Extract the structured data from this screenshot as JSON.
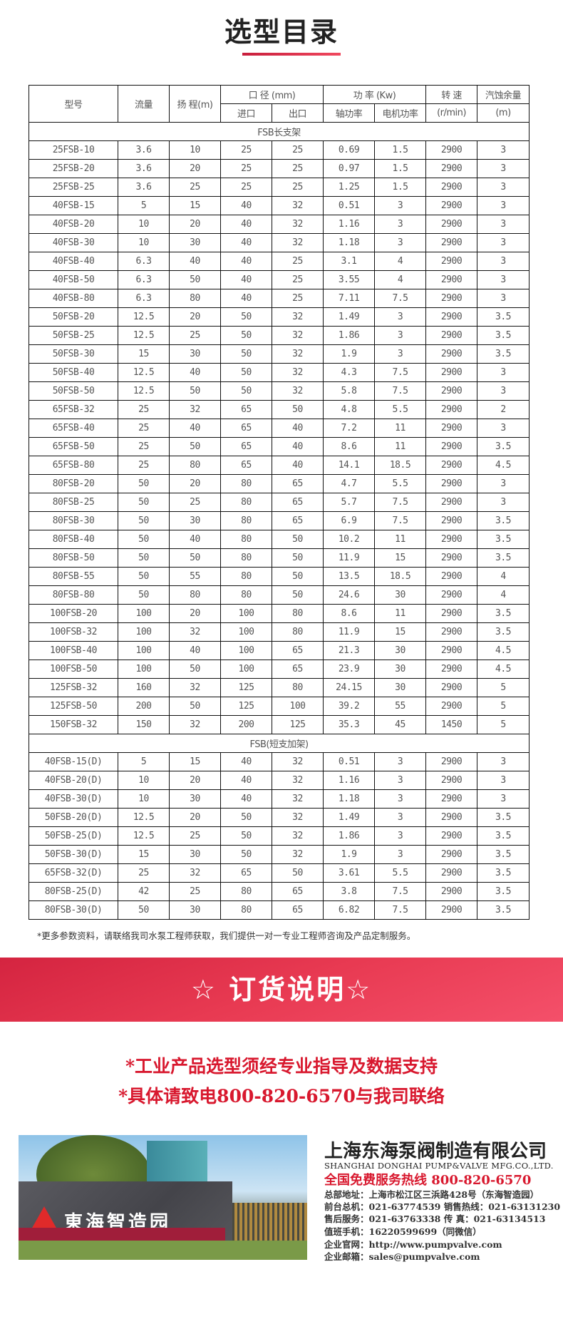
{
  "title": "选型目录",
  "table": {
    "headers": {
      "model": "型号",
      "flow": "流量",
      "head": "扬 程(m)",
      "diameter": "口 径 (mm)",
      "inlet": "进口",
      "outlet": "出口",
      "power": "功 率 (Kw)",
      "shaft_power": "轴功率",
      "motor_power": "电机功率",
      "speed": "转 速",
      "speed_unit": "(r/min)",
      "npsh": "汽蚀余量",
      "npsh_unit": "(m)"
    },
    "sections": [
      {
        "name": "FSB长支架",
        "rows": [
          [
            "25FSB-10",
            "3.6",
            "10",
            "25",
            "25",
            "0.69",
            "1.5",
            "2900",
            "3"
          ],
          [
            "25FSB-20",
            "3.6",
            "20",
            "25",
            "25",
            "0.97",
            "1.5",
            "2900",
            "3"
          ],
          [
            "25FSB-25",
            "3.6",
            "25",
            "25",
            "25",
            "1.25",
            "1.5",
            "2900",
            "3"
          ],
          [
            "40FSB-15",
            "5",
            "15",
            "40",
            "32",
            "0.51",
            "3",
            "2900",
            "3"
          ],
          [
            "40FSB-20",
            "10",
            "20",
            "40",
            "32",
            "1.16",
            "3",
            "2900",
            "3"
          ],
          [
            "40FSB-30",
            "10",
            "30",
            "40",
            "32",
            "1.18",
            "3",
            "2900",
            "3"
          ],
          [
            "40FSB-40",
            "6.3",
            "40",
            "40",
            "25",
            "3.1",
            "4",
            "2900",
            "3"
          ],
          [
            "40FSB-50",
            "6.3",
            "50",
            "40",
            "25",
            "3.55",
            "4",
            "2900",
            "3"
          ],
          [
            "40FSB-80",
            "6.3",
            "80",
            "40",
            "25",
            "7.11",
            "7.5",
            "2900",
            "3"
          ],
          [
            "50FSB-20",
            "12.5",
            "20",
            "50",
            "32",
            "1.49",
            "3",
            "2900",
            "3.5"
          ],
          [
            "50FSB-25",
            "12.5",
            "25",
            "50",
            "32",
            "1.86",
            "3",
            "2900",
            "3.5"
          ],
          [
            "50FSB-30",
            "15",
            "30",
            "50",
            "32",
            "1.9",
            "3",
            "2900",
            "3.5"
          ],
          [
            "50FSB-40",
            "12.5",
            "40",
            "50",
            "32",
            "4.3",
            "7.5",
            "2900",
            "3"
          ],
          [
            "50FSB-50",
            "12.5",
            "50",
            "50",
            "32",
            "5.8",
            "7.5",
            "2900",
            "3"
          ],
          [
            "65FSB-32",
            "25",
            "32",
            "65",
            "50",
            "4.8",
            "5.5",
            "2900",
            "2"
          ],
          [
            "65FSB-40",
            "25",
            "40",
            "65",
            "40",
            "7.2",
            "11",
            "2900",
            "3"
          ],
          [
            "65FSB-50",
            "25",
            "50",
            "65",
            "40",
            "8.6",
            "11",
            "2900",
            "3.5"
          ],
          [
            "65FSB-80",
            "25",
            "80",
            "65",
            "40",
            "14.1",
            "18.5",
            "2900",
            "4.5"
          ],
          [
            "80FSB-20",
            "50",
            "20",
            "80",
            "65",
            "4.7",
            "5.5",
            "2900",
            "3"
          ],
          [
            "80FSB-25",
            "50",
            "25",
            "80",
            "65",
            "5.7",
            "7.5",
            "2900",
            "3"
          ],
          [
            "80FSB-30",
            "50",
            "30",
            "80",
            "65",
            "6.9",
            "7.5",
            "2900",
            "3.5"
          ],
          [
            "80FSB-40",
            "50",
            "40",
            "80",
            "50",
            "10.2",
            "11",
            "2900",
            "3.5"
          ],
          [
            "80FSB-50",
            "50",
            "50",
            "80",
            "50",
            "11.9",
            "15",
            "2900",
            "3.5"
          ],
          [
            "80FSB-55",
            "50",
            "55",
            "80",
            "50",
            "13.5",
            "18.5",
            "2900",
            "4"
          ],
          [
            "80FSB-80",
            "50",
            "80",
            "80",
            "50",
            "24.6",
            "30",
            "2900",
            "4"
          ],
          [
            "100FSB-20",
            "100",
            "20",
            "100",
            "80",
            "8.6",
            "11",
            "2900",
            "3.5"
          ],
          [
            "100FSB-32",
            "100",
            "32",
            "100",
            "80",
            "11.9",
            "15",
            "2900",
            "3.5"
          ],
          [
            "100FSB-40",
            "100",
            "40",
            "100",
            "65",
            "21.3",
            "30",
            "2900",
            "4.5"
          ],
          [
            "100FSB-50",
            "100",
            "50",
            "100",
            "65",
            "23.9",
            "30",
            "2900",
            "4.5"
          ],
          [
            "125FSB-32",
            "160",
            "32",
            "125",
            "80",
            "24.15",
            "30",
            "2900",
            "5"
          ],
          [
            "125FSB-50",
            "200",
            "50",
            "125",
            "100",
            "39.2",
            "55",
            "2900",
            "5"
          ],
          [
            "150FSB-32",
            "150",
            "32",
            "200",
            "125",
            "35.3",
            "45",
            "1450",
            "5"
          ]
        ]
      },
      {
        "name": "FSB(短支加架)",
        "rows": [
          [
            "40FSB-15(D)",
            "5",
            "15",
            "40",
            "32",
            "0.51",
            "3",
            "2900",
            "3"
          ],
          [
            "40FSB-20(D)",
            "10",
            "20",
            "40",
            "32",
            "1.16",
            "3",
            "2900",
            "3"
          ],
          [
            "40FSB-30(D)",
            "10",
            "30",
            "40",
            "32",
            "1.18",
            "3",
            "2900",
            "3"
          ],
          [
            "50FSB-20(D)",
            "12.5",
            "20",
            "50",
            "32",
            "1.49",
            "3",
            "2900",
            "3.5"
          ],
          [
            "50FSB-25(D)",
            "12.5",
            "25",
            "50",
            "32",
            "1.86",
            "3",
            "2900",
            "3.5"
          ],
          [
            "50FSB-30(D)",
            "15",
            "30",
            "50",
            "32",
            "1.9",
            "3",
            "2900",
            "3.5"
          ],
          [
            "65FSB-32(D)",
            "25",
            "32",
            "65",
            "50",
            "3.61",
            "5.5",
            "2900",
            "3.5"
          ],
          [
            "80FSB-25(D)",
            "42",
            "25",
            "80",
            "65",
            "3.8",
            "7.5",
            "2900",
            "3.5"
          ],
          [
            "80FSB-30(D)",
            "50",
            "30",
            "80",
            "65",
            "6.82",
            "7.5",
            "2900",
            "3.5"
          ]
        ]
      }
    ]
  },
  "note": "*更多参数资料，请联络我司水泵工程师获取，我们提供一对一专业工程师咨询及产品定制服务。",
  "banner": "☆ 订货说明☆",
  "notice": {
    "line1": "*工业产品选型须经专业指导及数据支持",
    "line2": "*具体请致电800-820-6570与我司联络"
  },
  "photo": {
    "sign_text": "東海智造园"
  },
  "company": {
    "name": "上海东海泵阀制造有限公司",
    "name_en": "SHANGHAI DONGHAI PUMP&VALVE MFG.CO.,LTD.",
    "hotline": "全国免费服务热线  800-820-6570",
    "lines": [
      "总部地址：上海市松江区三浜路428号（东海智造园）",
      "前台总机：021-63774539  销售热线：021-63131230",
      "售后服务：021-63763338  传    真：021-63134513",
      "值班手机：16220599699（同微信）",
      "企业官网：http://www.pumpvalve.com",
      "企业邮箱：sales@pumpvalve.com"
    ]
  },
  "colors": {
    "accent": "#d8182e",
    "banner": "#e83a52"
  }
}
